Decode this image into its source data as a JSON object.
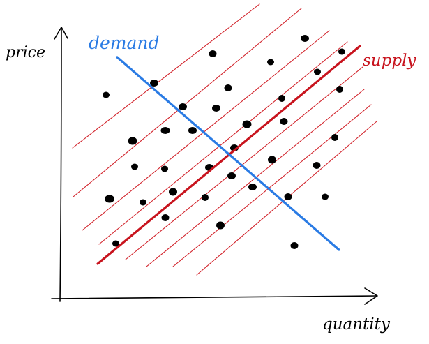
{
  "labels": {
    "y_axis": "price",
    "x_axis": "quantity",
    "demand": "demand",
    "supply": "supply"
  },
  "colors": {
    "axes": "#000000",
    "demand": "#2a7be4",
    "supply": "#c8141e",
    "parallel_lines": "#d2242c",
    "points": "#000000"
  }
}
